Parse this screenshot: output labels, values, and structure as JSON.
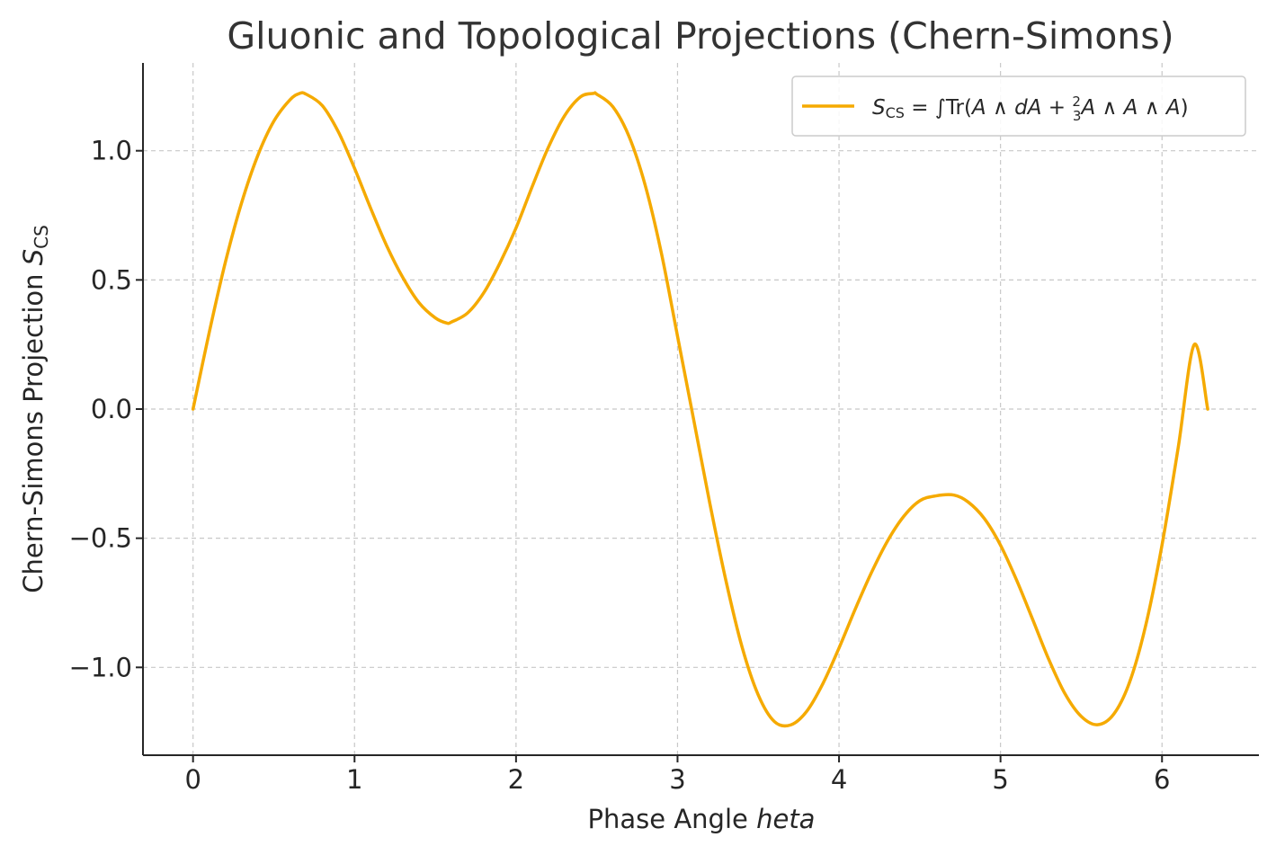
{
  "chart_data": {
    "type": "line",
    "title": "Gluonic and Topological Projections (Chern-Simons)",
    "xlabel_main": "Phase Angle ",
    "xlabel_var": "heta",
    "ylabel_main": "Chern-Simons Projection ",
    "ylabel_var": "S",
    "ylabel_sub": "CS",
    "xlim": [
      -0.31,
      6.6
    ],
    "ylim": [
      -1.34,
      1.34
    ],
    "xticks": [
      0,
      1,
      2,
      3,
      4,
      5,
      6
    ],
    "xtick_labels": [
      "0",
      "1",
      "2",
      "3",
      "4",
      "5",
      "6"
    ],
    "yticks": [
      -1.0,
      -0.5,
      0.0,
      0.5,
      1.0
    ],
    "ytick_labels": [
      "−1.0",
      "−0.5",
      "0.0",
      "0.5",
      "1.0"
    ],
    "grid": true,
    "legend_position": "top-right",
    "series": [
      {
        "name": "S_CS = ∫Tr(A ∧ dA + 2/3 A ∧ A ∧ A)",
        "color": "#F5AA00",
        "x": [
          0,
          0.1,
          0.2,
          0.3,
          0.4,
          0.5,
          0.6,
          0.66,
          0.7,
          0.8,
          0.9,
          1.0,
          1.1,
          1.2,
          1.3,
          1.4,
          1.5,
          1.571,
          1.6,
          1.7,
          1.8,
          1.9,
          2.0,
          2.1,
          2.2,
          2.3,
          2.4,
          2.48,
          2.5,
          2.6,
          2.7,
          2.8,
          2.9,
          3.0,
          3.1,
          3.2,
          3.3,
          3.4,
          3.5,
          3.6,
          3.7,
          3.8,
          3.9,
          4.0,
          4.1,
          4.2,
          4.3,
          4.4,
          4.5,
          4.6,
          4.712,
          4.8,
          4.9,
          5.0,
          5.1,
          5.2,
          5.3,
          5.4,
          5.5,
          5.6,
          5.7,
          5.8,
          5.9,
          6.0,
          6.1,
          6.2,
          6.283
        ],
        "y": [
          0,
          0.296,
          0.568,
          0.797,
          0.98,
          1.114,
          1.197,
          1.222,
          1.219,
          1.175,
          1.073,
          0.932,
          0.777,
          0.631,
          0.508,
          0.411,
          0.353,
          0.333,
          0.337,
          0.372,
          0.45,
          0.565,
          0.701,
          0.861,
          1.013,
          1.135,
          1.209,
          1.222,
          1.219,
          1.17,
          1.055,
          0.866,
          0.604,
          0.282,
          -0.041,
          -0.365,
          -0.665,
          -0.922,
          -1.107,
          -1.21,
          -1.223,
          -1.17,
          -1.063,
          -0.925,
          -0.775,
          -0.634,
          -0.511,
          -0.416,
          -0.355,
          -0.336,
          -0.333,
          -0.36,
          -0.424,
          -0.527,
          -0.663,
          -0.816,
          -0.971,
          -1.103,
          -1.19,
          -1.222,
          -1.182,
          -1.056,
          -0.835,
          -0.526,
          -0.15,
          0.25,
          0
        ]
      }
    ],
    "legend_label": {
      "s": "S",
      "sub": "CS",
      "eq": " = ∫Tr(",
      "a1": "A ∧ dA",
      "plus": " + ",
      "frac_num": "2",
      "frac_den": "3",
      "a2": "A ∧ A ∧ A",
      "close": ")"
    }
  }
}
